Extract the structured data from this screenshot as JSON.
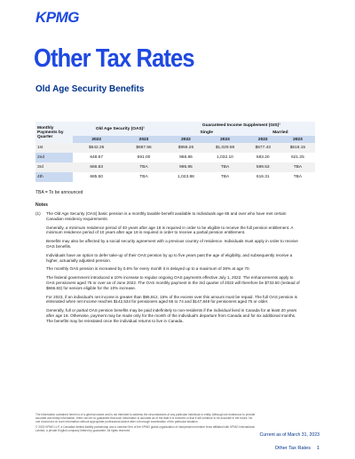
{
  "header": {
    "logo": "KPMG",
    "title": "Other Tax Rates",
    "subtitle": "Old Age Security Benefits"
  },
  "table": {
    "row_header": "Monthly Payments by Quarter",
    "group_headers": [
      "Old Age Security (OAS)¹",
      "Guaranteed Income Supplement (GIS)¹"
    ],
    "sub_headers": [
      "Single",
      "Married"
    ],
    "years": [
      "2022",
      "2023",
      "2022",
      "2023",
      "2022",
      "2023"
    ],
    "rows": [
      [
        "1st",
        "$642.25",
        "$687.56",
        "$959.26",
        "$1,029.59",
        "$577.43",
        "$618.15"
      ],
      [
        "2nd",
        "648.67",
        "691.00",
        "968.86",
        "1,032.10",
        "583.20",
        "621.25"
      ],
      [
        "3rd",
        "666.83",
        "TBA",
        "995.95",
        "TBA",
        "599.53",
        "TBA"
      ],
      [
        "4th",
        "685.50",
        "TBA",
        "1,023.88",
        "TBA",
        "616.31",
        "TBA"
      ]
    ]
  },
  "tba_note": "TBA = To be announced",
  "notes": {
    "heading": "Notes",
    "items": [
      {
        "marker": "(1)",
        "paragraphs": [
          "The Old Age Security (OAS) basic pension is a monthly taxable benefit available to individuals age 65 and over who have met certain Canadian residency requirements.",
          "Generally, a minimum residence period of 40 years after age 18 is required in order to be eligible to receive the full pension entitlement. A minimum residence period of 10 years after age 18 is required in order to receive a partial pension entitlement.",
          "Benefits may also be affected by a social security agreement with a previous country of residence. Individuals must apply in order to receive OAS benefits.",
          "Individuals have an option to defer take-up of their OAS pension by up to five years past the age of eligibility, and subsequently receive a higher, actuarially adjusted pension.",
          "The monthly OAS pension is increased by 0.6% for every month it is delayed up to a maximum of 36% at age 70.",
          "The federal government introduced a 10% increase to regular ongoing OAS payments effective July 1, 2022. The enhancements apply to OAS pensioners aged 75 or over as of June 2022. The OAS monthly payment in the 3rd quarter of 2022 will therefore be $733.50 (instead of $666.83) for seniors eligible for the 10% increase.",
          "For 2023, if an individual's net income is greater than $86,912, 15% of the excess over this amount must be repaid. The full OAS pension is eliminated when net income reaches $142,534 for pensioners aged 65 to 74 and $147,848 for pensioners aged 75 or older.",
          "Generally, full or partial OAS pension benefits may be paid indefinitely to non-residents if the individual lived in Canada for at least 20 years after age 18. Otherwise, payment may be made only for the month of the individual's departure from Canada and for six additional months. The benefits may be reinstated once the individual returns to live in Canada."
        ]
      }
    ]
  },
  "footer": {
    "disclaimer": [
      "The information contained herein is of a general nature and is not intended to address the circumstances of any particular individual or entity. Although we endeavour to provide accurate and timely information, there can be no guarantee that such information is accurate as of the date it is received or that it will continue to be accurate in the future. No one should act on such information without appropriate professional advice after a thorough examination of the particular situation.",
      "© 2023 KPMG LLP, a Canadian limited liability partnership and a member firm of the KPMG global organization of independent member firms affiliated with KPMG International Limited, a private English company limited by guarantee. All rights reserved."
    ],
    "date": "Current as of March 31, 2023",
    "page_label": "Other Tax Rates",
    "page_number": "1"
  }
}
